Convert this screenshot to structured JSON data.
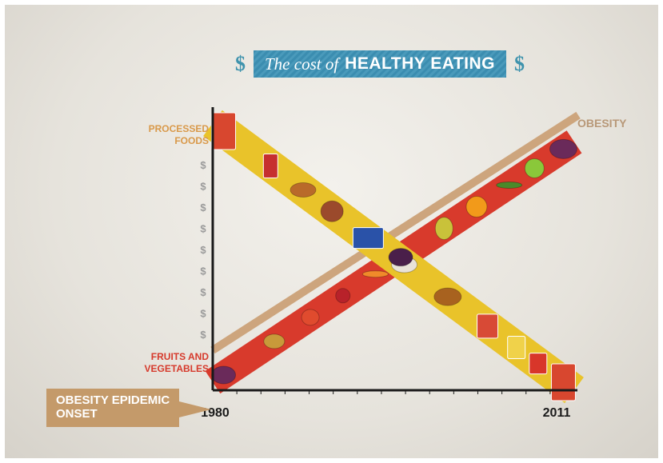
{
  "header": {
    "title_italic": "The cost of",
    "title_bold": "HEALTHY EATING",
    "dollar_symbol": "$"
  },
  "chart_data": {
    "type": "line",
    "title": "The cost of HEALTHY EATING",
    "x": [
      1980,
      2011
    ],
    "xlim": [
      1980,
      2011
    ],
    "xtick_labels": [
      "1980",
      "2011"
    ],
    "y_tick_symbol": "$",
    "y_tick_count": 9,
    "ylim": [
      0,
      10
    ],
    "series": [
      {
        "name": "PROCESSED FOODS",
        "values": [
          10,
          0
        ],
        "color": "#e9c32a"
      },
      {
        "name": "FRUITS AND VEGETABLES",
        "values": [
          0.3,
          9.3
        ],
        "color": "#d83a2c"
      },
      {
        "name": "OBESITY",
        "values": [
          1.5,
          10.2
        ],
        "color": "#cda57d"
      }
    ],
    "series_labels": {
      "processed_line1": "PROCESSED",
      "processed_line2": "FOODS",
      "fruits_line1": "FRUITS AND",
      "fruits_line2": "VEGETABLES",
      "obesity": "OBESITY"
    },
    "annotation": "OBESITY EPIDEMIC ONSET"
  },
  "annotation": {
    "line1": "OBESITY EPIDEMIC",
    "line2": "ONSET"
  },
  "colors": {
    "processed": "#e9c32a",
    "fruits": "#d83a2c",
    "obesity": "#cda57d",
    "accent": "#3f93ad",
    "callout": "#c49a6a"
  },
  "icons": [
    "snack-bag-icon",
    "soda-can-icon",
    "burger-icon",
    "dessert-icon",
    "cereal-box-icon",
    "cake-icon",
    "fried-chicken-icon",
    "candy-icon",
    "chips-icon",
    "fries-icon",
    "grapes-icon",
    "potato-icon",
    "tomato-icon",
    "apple-icon",
    "carrot-icon",
    "eggplant-icon",
    "pear-icon",
    "orange-icon",
    "green-bean-icon"
  ]
}
